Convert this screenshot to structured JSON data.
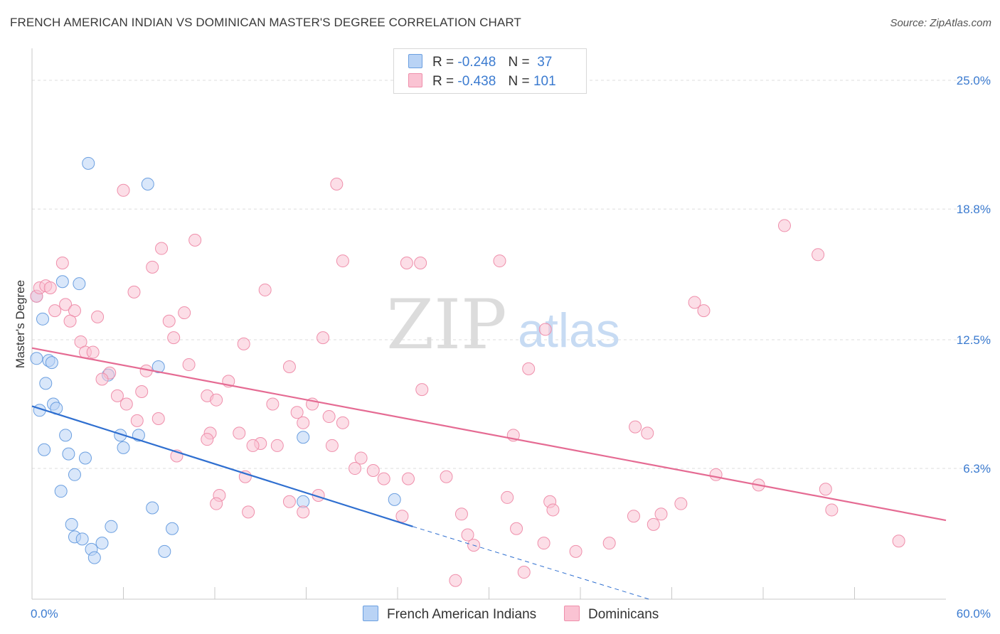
{
  "title": "FRENCH AMERICAN INDIAN VS DOMINICAN MASTER'S DEGREE CORRELATION CHART",
  "source": "Source: ZipAtlas.com",
  "watermark": {
    "zip": "ZIP",
    "atlas": "atlas"
  },
  "legend": {
    "rows": [
      {
        "r_label": "R =",
        "r_value": "-0.248",
        "n_label": "N =",
        "n_value": " 37",
        "color": "#b9d3f5",
        "border": "#6b9fe0"
      },
      {
        "r_label": "R =",
        "r_value": "-0.438",
        "n_label": "N =",
        "n_value": "101",
        "color": "#fac3d3",
        "border": "#ef8fab"
      }
    ]
  },
  "bottom_legend": [
    {
      "label": "French American Indians",
      "color": "#b9d3f5",
      "border": "#6b9fe0"
    },
    {
      "label": "Dominicans",
      "color": "#fac3d3",
      "border": "#ef8fab"
    }
  ],
  "chart_data": {
    "type": "scatter",
    "title": "FRENCH AMERICAN INDIAN VS DOMINICAN MASTER'S DEGREE CORRELATION CHART",
    "xlabel": "",
    "ylabel": "Master's Degree",
    "xlim": [
      0,
      60
    ],
    "ylim": [
      0,
      26.2
    ],
    "x_tick_labels": [
      {
        "value": 0,
        "label": "0.0%"
      },
      {
        "value": 60,
        "label": "60.0%"
      }
    ],
    "y_tick_labels": [
      {
        "value": 6.3,
        "label": "6.3%"
      },
      {
        "value": 12.5,
        "label": "12.5%"
      },
      {
        "value": 18.8,
        "label": "18.8%"
      },
      {
        "value": 25.0,
        "label": "25.0%"
      }
    ],
    "series": [
      {
        "name": "French American Indians",
        "color": "#6b9fe0",
        "fill": "#b9d3f5",
        "trend": {
          "x0": 0,
          "y0": 9.3,
          "x1": 25,
          "y1": 3.5,
          "dash_to_x": 40.5,
          "dash_to_y": 0.0,
          "color": "#2f6fd0"
        },
        "points": [
          [
            0.3,
            14.6
          ],
          [
            3.7,
            21.0
          ],
          [
            7.6,
            20.0
          ],
          [
            0.7,
            13.5
          ],
          [
            3.1,
            15.2
          ],
          [
            2.0,
            15.3
          ],
          [
            0.3,
            11.6
          ],
          [
            1.1,
            11.5
          ],
          [
            1.3,
            11.4
          ],
          [
            0.9,
            10.4
          ],
          [
            5.0,
            10.8
          ],
          [
            8.3,
            11.2
          ],
          [
            1.4,
            9.4
          ],
          [
            1.6,
            9.2
          ],
          [
            0.5,
            9.1
          ],
          [
            2.2,
            7.9
          ],
          [
            7.0,
            7.9
          ],
          [
            5.8,
            7.9
          ],
          [
            17.8,
            7.8
          ],
          [
            0.8,
            7.2
          ],
          [
            6.0,
            7.3
          ],
          [
            2.4,
            7.0
          ],
          [
            3.5,
            6.8
          ],
          [
            2.8,
            6.0
          ],
          [
            1.9,
            5.2
          ],
          [
            7.9,
            4.4
          ],
          [
            17.8,
            4.7
          ],
          [
            23.8,
            4.8
          ],
          [
            2.6,
            3.6
          ],
          [
            5.2,
            3.5
          ],
          [
            9.2,
            3.4
          ],
          [
            2.8,
            3.0
          ],
          [
            3.3,
            2.9
          ],
          [
            4.6,
            2.7
          ],
          [
            3.9,
            2.4
          ],
          [
            8.7,
            2.3
          ],
          [
            4.1,
            2.0
          ]
        ]
      },
      {
        "name": "Dominicans",
        "color": "#ef8fab",
        "fill": "#fac3d3",
        "trend": {
          "x0": 0,
          "y0": 12.1,
          "x1": 60,
          "y1": 3.8,
          "color": "#e56b93"
        },
        "points": [
          [
            0.3,
            14.6
          ],
          [
            0.5,
            15.0
          ],
          [
            0.9,
            15.1
          ],
          [
            1.2,
            15.0
          ],
          [
            6.0,
            19.7
          ],
          [
            2.0,
            16.2
          ],
          [
            8.5,
            16.9
          ],
          [
            10.7,
            17.3
          ],
          [
            7.9,
            16.0
          ],
          [
            20.4,
            16.3
          ],
          [
            24.6,
            16.2
          ],
          [
            25.5,
            16.2
          ],
          [
            30.7,
            16.3
          ],
          [
            49.4,
            18.0
          ],
          [
            51.6,
            16.6
          ],
          [
            6.7,
            14.8
          ],
          [
            15.3,
            14.9
          ],
          [
            2.2,
            14.2
          ],
          [
            1.5,
            13.9
          ],
          [
            2.8,
            13.9
          ],
          [
            4.3,
            13.6
          ],
          [
            2.5,
            13.4
          ],
          [
            9.0,
            13.4
          ],
          [
            10.0,
            13.8
          ],
          [
            43.5,
            14.3
          ],
          [
            44.1,
            13.9
          ],
          [
            9.3,
            12.6
          ],
          [
            3.2,
            12.4
          ],
          [
            13.9,
            12.3
          ],
          [
            19.1,
            12.6
          ],
          [
            33.7,
            13.0
          ],
          [
            3.5,
            11.9
          ],
          [
            4.0,
            11.9
          ],
          [
            10.3,
            11.3
          ],
          [
            16.9,
            11.2
          ],
          [
            7.5,
            11.0
          ],
          [
            32.6,
            11.1
          ],
          [
            5.1,
            10.9
          ],
          [
            4.6,
            10.6
          ],
          [
            12.9,
            10.5
          ],
          [
            25.6,
            10.1
          ],
          [
            5.6,
            9.8
          ],
          [
            7.2,
            10.0
          ],
          [
            11.5,
            9.8
          ],
          [
            12.1,
            9.6
          ],
          [
            6.2,
            9.4
          ],
          [
            15.8,
            9.4
          ],
          [
            18.4,
            9.4
          ],
          [
            17.4,
            9.0
          ],
          [
            19.5,
            8.8
          ],
          [
            8.3,
            8.7
          ],
          [
            6.9,
            8.6
          ],
          [
            17.8,
            8.5
          ],
          [
            20.4,
            8.5
          ],
          [
            39.6,
            8.3
          ],
          [
            40.4,
            8.0
          ],
          [
            11.7,
            8.0
          ],
          [
            13.6,
            8.0
          ],
          [
            11.5,
            7.7
          ],
          [
            15.0,
            7.5
          ],
          [
            14.5,
            7.4
          ],
          [
            16.1,
            7.4
          ],
          [
            19.7,
            7.4
          ],
          [
            31.6,
            7.9
          ],
          [
            9.5,
            6.9
          ],
          [
            21.6,
            6.8
          ],
          [
            21.2,
            6.3
          ],
          [
            22.4,
            6.2
          ],
          [
            14.0,
            5.9
          ],
          [
            23.1,
            5.8
          ],
          [
            24.7,
            5.8
          ],
          [
            27.2,
            5.9
          ],
          [
            44.9,
            6.0
          ],
          [
            47.7,
            5.5
          ],
          [
            52.1,
            5.3
          ],
          [
            12.3,
            5.0
          ],
          [
            18.8,
            5.0
          ],
          [
            31.2,
            4.9
          ],
          [
            12.1,
            4.6
          ],
          [
            16.9,
            4.7
          ],
          [
            34.0,
            4.7
          ],
          [
            42.6,
            4.6
          ],
          [
            17.8,
            4.2
          ],
          [
            14.2,
            4.2
          ],
          [
            28.2,
            4.1
          ],
          [
            34.2,
            4.3
          ],
          [
            39.5,
            4.0
          ],
          [
            41.3,
            4.1
          ],
          [
            52.5,
            4.3
          ],
          [
            24.3,
            4.0
          ],
          [
            40.8,
            3.6
          ],
          [
            31.8,
            3.4
          ],
          [
            28.6,
            3.1
          ],
          [
            29.0,
            2.6
          ],
          [
            33.6,
            2.7
          ],
          [
            35.7,
            2.3
          ],
          [
            37.9,
            2.7
          ],
          [
            56.9,
            2.8
          ],
          [
            27.8,
            0.9
          ],
          [
            32.3,
            1.3
          ],
          [
            20.0,
            20.0
          ]
        ]
      }
    ]
  }
}
